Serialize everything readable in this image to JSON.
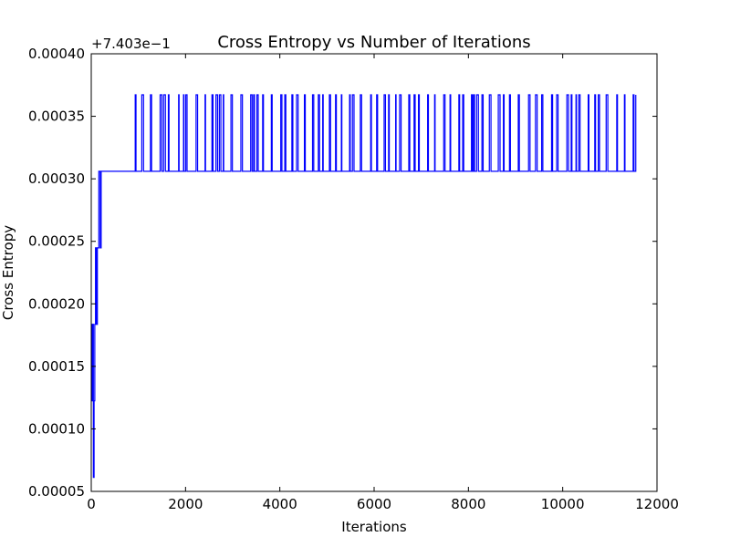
{
  "chart_data": {
    "type": "line",
    "title": "Cross Entropy vs Number of Iterations",
    "xlabel": "Iterations",
    "ylabel": "Cross Entropy",
    "offset_text": "+7.403e−1",
    "xlim": [
      0,
      12000
    ],
    "ylim": [
      5e-05,
      0.0004
    ],
    "x_ticks": [
      "0",
      "2000",
      "4000",
      "6000",
      "8000",
      "10000",
      "12000"
    ],
    "x_tick_values": [
      0,
      2000,
      4000,
      6000,
      8000,
      10000,
      12000
    ],
    "y_ticks": [
      "0.00005",
      "0.00010",
      "0.00015",
      "0.00020",
      "0.00025",
      "0.00030",
      "0.00035",
      "0.00040"
    ],
    "y_tick_values": [
      5e-05,
      0.0001,
      0.00015,
      0.0002,
      0.00025,
      0.0003,
      0.00035,
      0.0004
    ],
    "grid": false,
    "series": [
      {
        "color": "#0000ff",
        "x_end": 11550,
        "levels": [
          6.12e-05,
          0.0001224,
          0.0001836,
          0.0002448,
          0.000306,
          0.0003672
        ],
        "initial_segment": [
          [
            0,
            0.0001836
          ],
          [
            15,
            0.0001224
          ],
          [
            30,
            0.0001836
          ],
          [
            45,
            6.12e-05
          ],
          [
            60,
            0.0001224
          ],
          [
            75,
            0.0001836
          ],
          [
            90,
            0.0002448
          ],
          [
            110,
            0.0001836
          ],
          [
            130,
            0.0002448
          ],
          [
            160,
            0.000306
          ],
          [
            190,
            0.0002448
          ],
          [
            210,
            0.000306
          ],
          [
            800,
            0.000306
          ]
        ],
        "oscillation": {
          "start": 800,
          "end": 11550,
          "low": 0.000306,
          "high": 0.0003672
        }
      }
    ]
  }
}
